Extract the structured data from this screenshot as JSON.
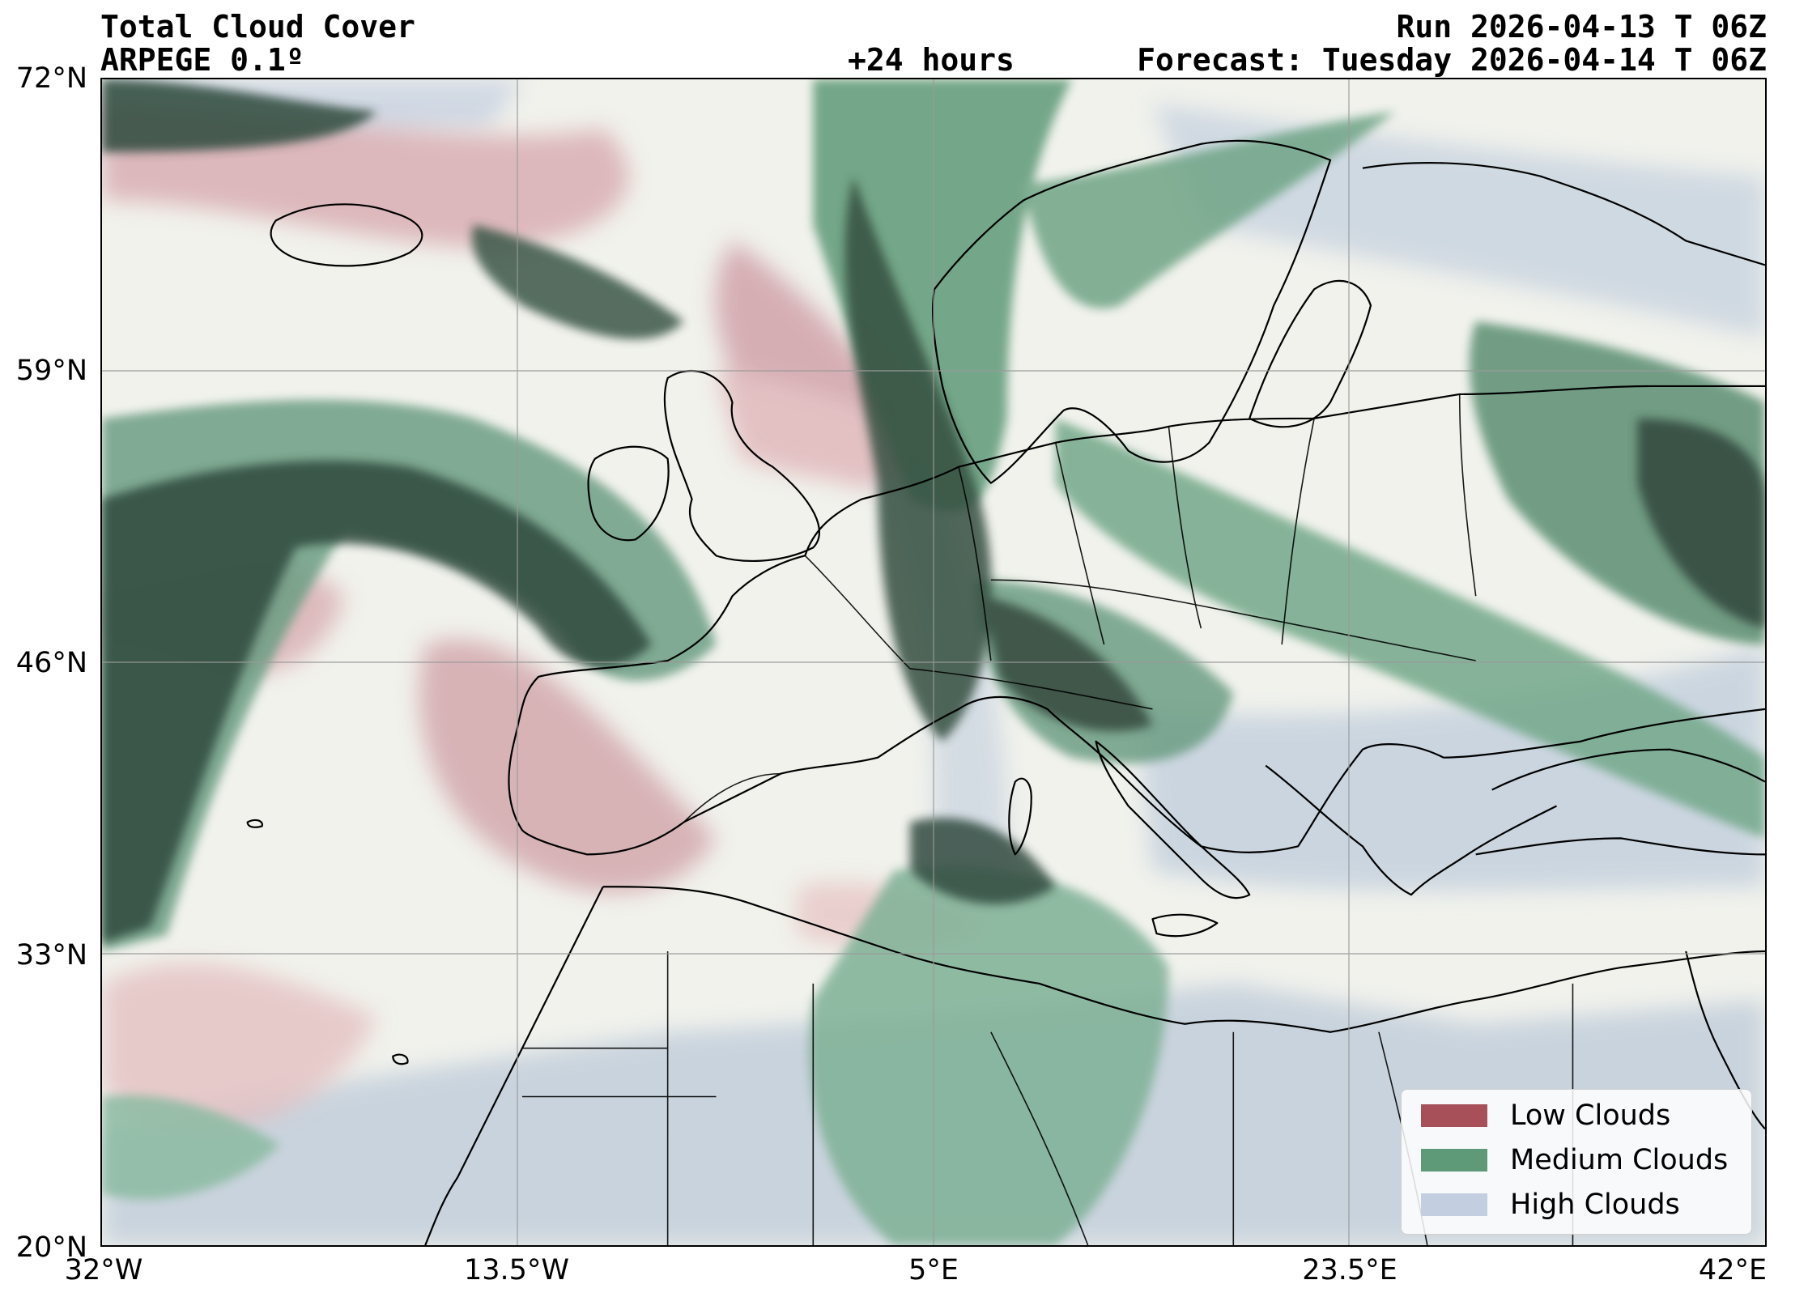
{
  "header": {
    "title": "Total Cloud Cover",
    "model": "ARPEGE 0.1º",
    "lead": "+24 hours",
    "run": "Run 2026-04-13 T 06Z",
    "forecast": "Forecast: Tuesday 2026-04-14 T 06Z"
  },
  "axes": {
    "lat_labels": [
      "72°N",
      "59°N",
      "46°N",
      "33°N",
      "20°N"
    ],
    "lon_labels": [
      "32°W",
      "13.5°W",
      "5°E",
      "23.5°E",
      "42°E"
    ]
  },
  "legend": {
    "items": [
      {
        "label": "Low Clouds",
        "color": "#a8505a"
      },
      {
        "label": "Medium Clouds",
        "color": "#5e9a78"
      },
      {
        "label": "High Clouds",
        "color": "#c3cee0"
      }
    ]
  },
  "colors": {
    "land": "#f1f2ec",
    "low": "#b06a76",
    "medium": "#2f6b4d",
    "dark": "#24352c",
    "high": "#aebfd4",
    "coast": "#000000"
  }
}
